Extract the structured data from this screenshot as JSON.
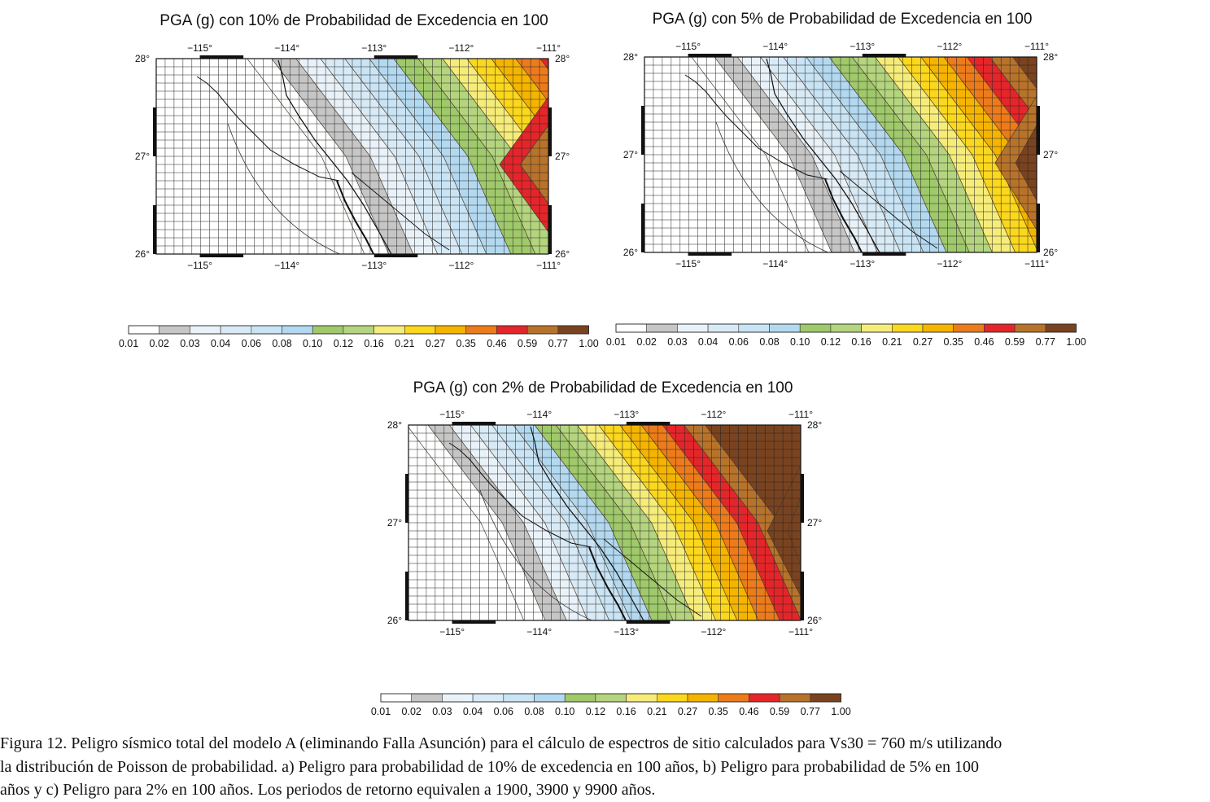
{
  "panels": [
    {
      "id": "a",
      "title": "PGA (g) con 10% de Probabilidad de Excedencia en 100",
      "shift": 0.0,
      "lon_labels": [
        "−115°",
        "−114°",
        "−113°",
        "−112°",
        "−111°"
      ],
      "lat_labels": [
        "28°",
        "27°",
        "26°"
      ]
    },
    {
      "id": "b",
      "title": "PGA (g) con 5% de Probabilidad de Excedencia en 100",
      "shift": 0.9,
      "lon_labels": [
        "−115°",
        "−114°",
        "−113°",
        "−112°",
        "−111°"
      ],
      "lat_labels": [
        "28°",
        "27°",
        "26°"
      ]
    },
    {
      "id": "c",
      "title": "PGA (g) con 2% de Probabilidad  de Excedencia en 100",
      "shift": 1.9,
      "lon_labels": [
        "−115°",
        "−114°",
        "−113°",
        "−112°",
        "−111°"
      ],
      "lat_labels": [
        "28°",
        "27°",
        "26°"
      ]
    }
  ],
  "colorscale": {
    "labels": [
      "0.01",
      "0.02",
      "0.03",
      "0.04",
      "0.06",
      "0.08",
      "0.10",
      "0.12",
      "0.16",
      "0.21",
      "0.27",
      "0.35",
      "0.46",
      "0.59",
      "0.77",
      "1.00"
    ],
    "colors": [
      "#ffffff",
      "#c6c6c6",
      "#e9f2f9",
      "#d8eaf6",
      "#c9e4f5",
      "#b3d9f0",
      "#9fc96a",
      "#b4d47e",
      "#f6ec7a",
      "#fbd71e",
      "#f5b400",
      "#ec7b1b",
      "#e4262a",
      "#b8732b",
      "#7a4320"
    ]
  },
  "caption": [
    "Figura 12. Peligro sísmico total del modelo A (eliminando Falla Asunción) para el cálculo de espectros de sitio calculados para Vs30 = 760 m/s utilizando",
    "la distribución de Poisson de probabilidad. a) Peligro para probabilidad de 10% de excedencia en 100 años, b) Peligro para probabilidad de 5% en 100",
    "años y c) Peligro para 2% en 100 años. Los periodos de retorno equivalen a 1900, 3900 y 9900 años."
  ]
}
